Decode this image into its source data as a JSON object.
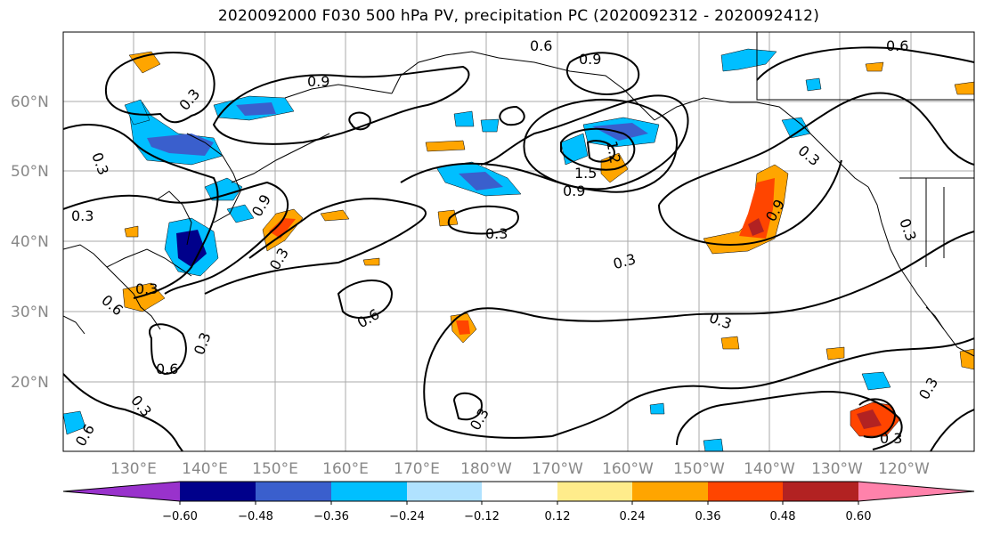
{
  "title": "2020092000 F030 500 hPa PV, precipitation PC (2020092312 - 2020092412)",
  "lat_labels": [
    "60°N",
    "50°N",
    "40°N",
    "30°N",
    "20°N"
  ],
  "lon_labels": [
    "130°E",
    "140°E",
    "150°E",
    "160°E",
    "170°E",
    "180°W",
    "170°W",
    "160°W",
    "150°W",
    "140°W",
    "130°W",
    "120°W"
  ],
  "colorbar": {
    "tick_labels": [
      "−0.60",
      "−0.48",
      "−0.36",
      "−0.24",
      "−0.12",
      "0.12",
      "0.24",
      "0.36",
      "0.48",
      "0.60"
    ],
    "colors": [
      "#9932cc",
      "#00008b",
      "#3a5fcd",
      "#00bfff",
      "#b0e2ff",
      "#ffffff",
      "#ffec8b",
      "#ffa500",
      "#ff4500",
      "#b22222",
      "#ff82ab"
    ]
  },
  "contour_labels": [
    "0.6",
    "0.9",
    "0.6",
    "0.3",
    "0.9",
    "0.3",
    "0.3",
    "0.9",
    "0.3",
    "0.3",
    "0.6",
    "0.3",
    "1.5",
    "1.2",
    "0.9",
    "0.3",
    "0.9",
    "0.3",
    "0.3",
    "0.3",
    "0.6",
    "0.3",
    "0.3",
    "0.6",
    "0.3",
    "0.6",
    "0.3",
    "0.3"
  ],
  "colors": {
    "land_line": "#000000",
    "grid": "#aaaaaa",
    "contour": "#000000"
  }
}
